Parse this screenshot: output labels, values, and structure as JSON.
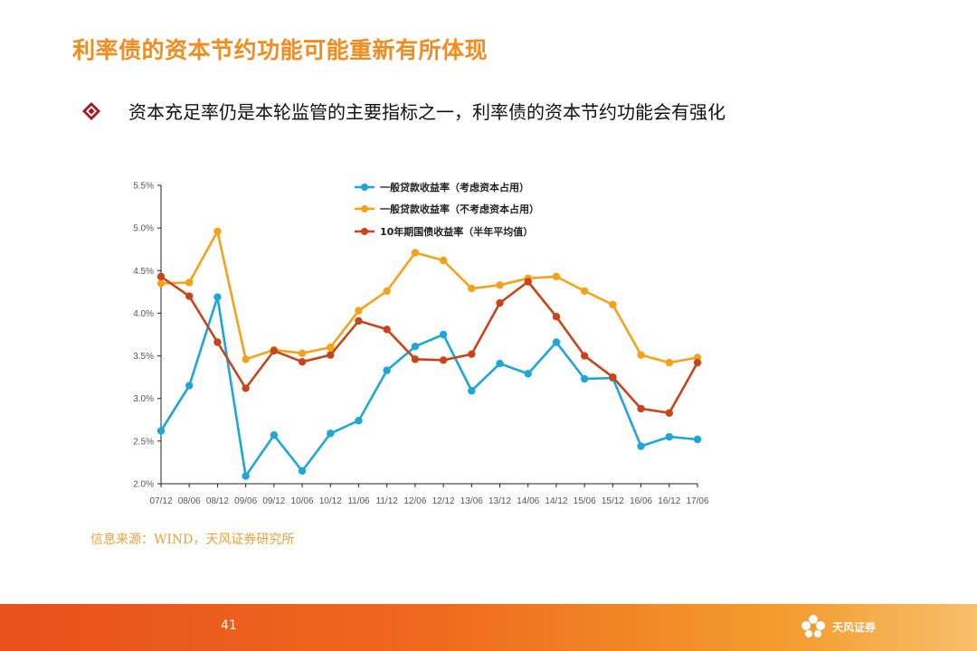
{
  "slide": {
    "title": "利率债的资本节约功能可能重新有所体现",
    "bullet": "资本充足率仍是本轮监管的主要指标之一，利率债的资本节约功能会有强化",
    "source": "信息来源：WIND，天风证券研究所",
    "page_number": "41",
    "logo_text": "天风证券"
  },
  "colors": {
    "title": "#F28C1E",
    "series_blue": "#1EA6D9",
    "series_orange": "#F5A219",
    "series_red": "#C84419",
    "footer": "#EF6A1E"
  },
  "chart_data": {
    "type": "line",
    "title": "",
    "xlabel": "",
    "ylabel": "",
    "categories": [
      "07/12",
      "08/06",
      "08/12",
      "09/06",
      "09/12",
      "10/06",
      "10/12",
      "11/06",
      "11/12",
      "12/06",
      "12/12",
      "13/06",
      "13/12",
      "14/06",
      "14/12",
      "15/06",
      "15/12",
      "16/06",
      "16/12",
      "17/06"
    ],
    "y_ticks": [
      "2.0%",
      "2.5%",
      "3.0%",
      "3.5%",
      "4.0%",
      "4.5%",
      "5.0%",
      "5.5%"
    ],
    "ylim": [
      2.0,
      5.5
    ],
    "legend_position": "top-right",
    "grid": false,
    "series": [
      {
        "name": "一般贷款收益率（考虑资本占用）",
        "color": "#1EA6D9",
        "values": [
          2.62,
          3.15,
          4.19,
          2.09,
          2.57,
          2.15,
          2.59,
          2.74,
          3.33,
          3.61,
          3.75,
          3.09,
          3.41,
          3.29,
          3.66,
          3.23,
          3.24,
          2.44,
          2.55,
          2.52
        ]
      },
      {
        "name": "一般贷款收益率（不考虑资本占用）",
        "color": "#F5A219",
        "values": [
          4.35,
          4.36,
          4.96,
          3.46,
          3.57,
          3.53,
          3.6,
          4.03,
          4.26,
          4.71,
          4.62,
          4.29,
          4.33,
          4.41,
          4.43,
          4.26,
          4.1,
          3.51,
          3.42,
          3.48
        ]
      },
      {
        "name": "10年期国债收益率（半年平均值）",
        "color": "#C84419",
        "values": [
          4.43,
          4.2,
          3.66,
          3.12,
          3.56,
          3.43,
          3.51,
          3.91,
          3.81,
          3.46,
          3.45,
          3.52,
          4.12,
          4.37,
          3.96,
          3.5,
          3.25,
          2.88,
          2.83,
          3.42
        ]
      }
    ]
  }
}
